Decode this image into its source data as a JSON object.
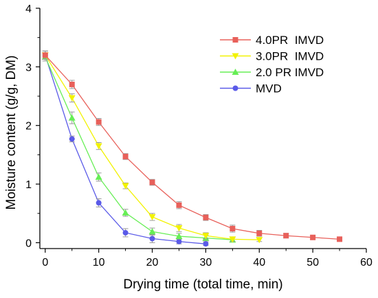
{
  "chart_data": {
    "type": "line",
    "xlabel": "Drying time (total time, min)",
    "ylabel": "Moisture content (g/g, DM)",
    "xlim": [
      -1,
      60
    ],
    "ylim": [
      -0.1,
      4
    ],
    "xticks": [
      0,
      10,
      20,
      30,
      40,
      50,
      60
    ],
    "yticks": [
      0,
      1,
      2,
      3,
      4
    ],
    "legend_position": "top-right",
    "grid": false,
    "series": [
      {
        "name": "4.0PR  IMVD",
        "color": "#e8605a",
        "marker": "square",
        "x": [
          0,
          5,
          10,
          15,
          20,
          25,
          30,
          35,
          40,
          45,
          50,
          55
        ],
        "y": [
          3.2,
          2.7,
          2.06,
          1.47,
          1.03,
          0.64,
          0.43,
          0.24,
          0.16,
          0.12,
          0.09,
          0.06
        ],
        "err": [
          0.07,
          0.07,
          0.06,
          0.05,
          0.05,
          0.06,
          0.05,
          0.06,
          0.05,
          0.04,
          0.03,
          0.02
        ]
      },
      {
        "name": "3.0PR  IMVD",
        "color": "#f2f200",
        "marker": "triangle-down",
        "x": [
          0,
          5,
          10,
          15,
          20,
          25,
          30,
          35,
          40
        ],
        "y": [
          3.2,
          2.47,
          1.65,
          0.97,
          0.44,
          0.25,
          0.12,
          0.06,
          0.05
        ],
        "err": [
          0.07,
          0.07,
          0.06,
          0.05,
          0.06,
          0.06,
          0.05,
          0.04,
          0.03
        ]
      },
      {
        "name": "2.0 PR IMVD",
        "color": "#66ee55",
        "marker": "triangle-up",
        "x": [
          0,
          5,
          10,
          15,
          20,
          25,
          30,
          35
        ],
        "y": [
          3.17,
          2.13,
          1.12,
          0.51,
          0.19,
          0.11,
          0.08,
          0.05
        ],
        "err": [
          0.07,
          0.1,
          0.07,
          0.06,
          0.06,
          0.05,
          0.05,
          0.04
        ]
      },
      {
        "name": "MVD",
        "color": "#5a5ae8",
        "marker": "circle",
        "x": [
          0,
          5,
          10,
          15,
          20,
          25,
          30
        ],
        "y": [
          3.2,
          1.77,
          0.68,
          0.17,
          0.07,
          0.02,
          -0.02
        ],
        "err": [
          0.07,
          0.05,
          0.07,
          0.07,
          0.07,
          0.04,
          0.03
        ]
      }
    ]
  }
}
